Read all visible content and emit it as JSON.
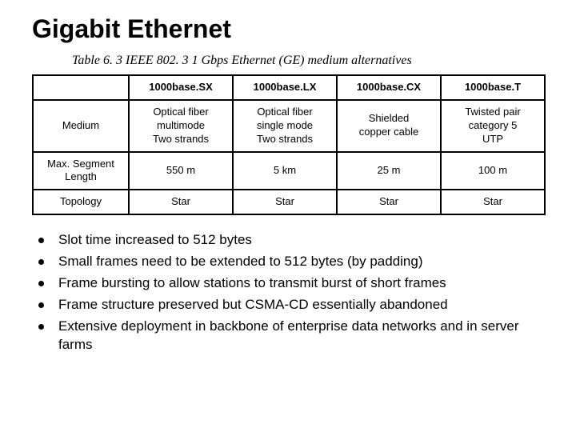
{
  "title": "Gigabit Ethernet",
  "caption": "Table 6. 3  IEEE 802. 3 1 Gbps Ethernet (GE) medium alternatives",
  "table": {
    "columns": [
      "",
      "1000base.SX",
      "1000base.LX",
      "1000base.CX",
      "1000base.T"
    ],
    "rows": [
      {
        "head": "Medium",
        "cells": [
          "Optical fiber\nmultimode\nTwo strands",
          "Optical fiber\nsingle mode\nTwo strands",
          "Shielded\ncopper cable",
          "Twisted pair\ncategory 5\nUTP"
        ]
      },
      {
        "head": "Max. Segment\nLength",
        "cells": [
          "550 m",
          "5 km",
          "25 m",
          "100 m"
        ]
      },
      {
        "head": "Topology",
        "cells": [
          "Star",
          "Star",
          "Star",
          "Star"
        ]
      }
    ]
  },
  "bullets": [
    "Slot time increased to 512 bytes",
    "Small frames need to be extended to 512 bytes (by padding)",
    "Frame bursting to allow stations to transmit burst of short frames",
    "Frame structure preserved but CSMA-CD essentially abandoned",
    "Extensive deployment in backbone of enterprise data networks and in server farms"
  ]
}
